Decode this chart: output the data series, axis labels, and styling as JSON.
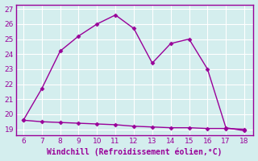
{
  "xlabel": "Windchill (Refroidissement éolien,°C)",
  "x_values": [
    6,
    7,
    8,
    9,
    10,
    11,
    12,
    13,
    14,
    15,
    16,
    17,
    18
  ],
  "line1_y": [
    19.6,
    21.7,
    24.2,
    25.2,
    26.0,
    26.6,
    25.7,
    23.4,
    24.7,
    25.0,
    23.0,
    19.1,
    18.9
  ],
  "line2_y": [
    19.6,
    19.5,
    19.45,
    19.4,
    19.35,
    19.3,
    19.2,
    19.15,
    19.1,
    19.1,
    19.05,
    19.05,
    19.0
  ],
  "line_color": "#990099",
  "bg_color": "#d4eeee",
  "grid_color": "#bbdddd",
  "xlim": [
    5.6,
    18.5
  ],
  "ylim": [
    18.6,
    27.3
  ],
  "x_ticks": [
    6,
    7,
    8,
    9,
    10,
    11,
    12,
    13,
    14,
    15,
    16,
    17,
    18
  ],
  "y_ticks": [
    19,
    20,
    21,
    22,
    23,
    24,
    25,
    26,
    27
  ],
  "tick_fontsize": 6.5,
  "label_fontsize": 7,
  "marker": "D",
  "marker_size": 2.5,
  "line_width": 1.0
}
